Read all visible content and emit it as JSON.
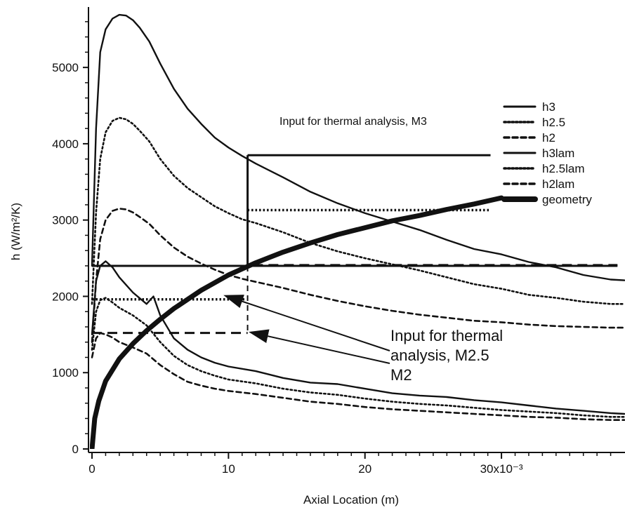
{
  "chart_data": {
    "type": "line",
    "xlabel": "Axial Location (m)",
    "ylabel": "h (W/m²/K)",
    "xlim": [
      0,
      0.039
    ],
    "ylim": [
      0,
      5700
    ],
    "x_ticks": [
      {
        "value": 0,
        "label": "0"
      },
      {
        "value": 0.01,
        "label": "10"
      },
      {
        "value": 0.02,
        "label": "20"
      },
      {
        "value": 0.03,
        "label": "30x10⁻³"
      }
    ],
    "y_ticks": [
      {
        "value": 0,
        "label": "0"
      },
      {
        "value": 1000,
        "label": "1000"
      },
      {
        "value": 2000,
        "label": "2000"
      },
      {
        "value": 3000,
        "label": "3000"
      },
      {
        "value": 4000,
        "label": "4000"
      },
      {
        "value": 5000,
        "label": "5000"
      }
    ],
    "legend_position": "right",
    "series": [
      {
        "name": "h3",
        "style": "solid",
        "x": [
          0,
          0.0003,
          0.0006,
          0.001,
          0.0015,
          0.002,
          0.0025,
          0.003,
          0.0035,
          0.0042,
          0.005,
          0.006,
          0.007,
          0.008,
          0.009,
          0.01,
          0.011,
          0.012,
          0.014,
          0.016,
          0.018,
          0.02,
          0.022,
          0.024,
          0.026,
          0.028,
          0.03,
          0.032,
          0.034,
          0.036,
          0.038,
          0.039
        ],
        "y": [
          2400,
          4200,
          5200,
          5500,
          5640,
          5690,
          5680,
          5620,
          5520,
          5340,
          5050,
          4720,
          4460,
          4260,
          4080,
          3950,
          3840,
          3740,
          3560,
          3370,
          3220,
          3090,
          2980,
          2870,
          2740,
          2620,
          2550,
          2450,
          2380,
          2280,
          2220,
          2210
        ]
      },
      {
        "name": "h2.5",
        "style": "dotted",
        "x": [
          0,
          0.0003,
          0.0006,
          0.001,
          0.0015,
          0.002,
          0.0025,
          0.003,
          0.0035,
          0.0042,
          0.005,
          0.006,
          0.007,
          0.008,
          0.009,
          0.01,
          0.011,
          0.012,
          0.014,
          0.016,
          0.018,
          0.02,
          0.022,
          0.024,
          0.026,
          0.028,
          0.03,
          0.032,
          0.034,
          0.036,
          0.038,
          0.039
        ],
        "y": [
          1900,
          3100,
          3800,
          4150,
          4300,
          4340,
          4320,
          4260,
          4170,
          4030,
          3800,
          3580,
          3420,
          3300,
          3180,
          3090,
          3010,
          2960,
          2840,
          2700,
          2590,
          2500,
          2420,
          2340,
          2250,
          2160,
          2100,
          2020,
          1980,
          1930,
          1900,
          1900
        ]
      },
      {
        "name": "h2",
        "style": "dashed",
        "x": [
          0,
          0.0003,
          0.0006,
          0.001,
          0.0015,
          0.002,
          0.0025,
          0.003,
          0.0035,
          0.0042,
          0.005,
          0.006,
          0.007,
          0.008,
          0.009,
          0.01,
          0.011,
          0.012,
          0.014,
          0.016,
          0.018,
          0.02,
          0.022,
          0.024,
          0.026,
          0.028,
          0.03,
          0.032,
          0.034,
          0.036,
          0.038,
          0.039
        ],
        "y": [
          1400,
          2200,
          2750,
          3000,
          3120,
          3150,
          3140,
          3100,
          3040,
          2950,
          2800,
          2640,
          2520,
          2430,
          2350,
          2280,
          2230,
          2190,
          2110,
          2020,
          1940,
          1870,
          1810,
          1760,
          1720,
          1680,
          1660,
          1630,
          1610,
          1600,
          1590,
          1590
        ]
      },
      {
        "name": "h3lam",
        "style": "solid",
        "x": [
          0,
          0.0003,
          0.0006,
          0.001,
          0.0015,
          0.002,
          0.003,
          0.004,
          0.0045,
          0.005,
          0.006,
          0.007,
          0.008,
          0.009,
          0.01,
          0.012,
          0.014,
          0.016,
          0.018,
          0.02,
          0.022,
          0.024,
          0.026,
          0.028,
          0.03,
          0.032,
          0.034,
          0.036,
          0.038,
          0.039
        ],
        "y": [
          1500,
          2200,
          2400,
          2460,
          2380,
          2250,
          2050,
          1900,
          2000,
          1750,
          1450,
          1300,
          1200,
          1130,
          1080,
          1020,
          930,
          870,
          850,
          790,
          730,
          700,
          680,
          640,
          610,
          570,
          530,
          500,
          470,
          460
        ]
      },
      {
        "name": "h2.5lam",
        "style": "dotted",
        "x": [
          0,
          0.0003,
          0.0006,
          0.001,
          0.0015,
          0.002,
          0.003,
          0.004,
          0.005,
          0.006,
          0.007,
          0.008,
          0.009,
          0.01,
          0.012,
          0.014,
          0.016,
          0.018,
          0.02,
          0.022,
          0.024,
          0.026,
          0.028,
          0.03,
          0.032,
          0.034,
          0.036,
          0.038,
          0.039
        ],
        "y": [
          1300,
          1800,
          1950,
          1980,
          1920,
          1850,
          1750,
          1620,
          1400,
          1220,
          1100,
          1020,
          960,
          910,
          860,
          790,
          740,
          710,
          660,
          620,
          590,
          570,
          540,
          510,
          490,
          470,
          440,
          420,
          420
        ]
      },
      {
        "name": "h2lam",
        "style": "dashed",
        "x": [
          0,
          0.0003,
          0.0006,
          0.001,
          0.0015,
          0.002,
          0.003,
          0.004,
          0.005,
          0.006,
          0.007,
          0.008,
          0.009,
          0.01,
          0.012,
          0.014,
          0.016,
          0.018,
          0.02,
          0.022,
          0.024,
          0.026,
          0.028,
          0.03,
          0.032,
          0.034,
          0.036,
          0.038,
          0.039
        ],
        "y": [
          1200,
          1450,
          1520,
          1500,
          1460,
          1400,
          1330,
          1250,
          1100,
          980,
          880,
          830,
          790,
          760,
          720,
          670,
          620,
          590,
          550,
          520,
          500,
          480,
          460,
          440,
          420,
          410,
          390,
          380,
          380
        ]
      },
      {
        "name": "geometry",
        "style": "thick",
        "x": [
          0,
          0.0002,
          0.0005,
          0.001,
          0.002,
          0.003,
          0.004,
          0.005,
          0.006,
          0.008,
          0.01,
          0.012,
          0.014,
          0.016,
          0.018,
          0.02,
          0.022,
          0.024,
          0.026,
          0.028,
          0.03
        ],
        "y": [
          0,
          400,
          630,
          890,
          1180,
          1380,
          1550,
          1700,
          1840,
          2080,
          2280,
          2440,
          2580,
          2700,
          2810,
          2900,
          2990,
          3060,
          3140,
          3210,
          3290
        ]
      }
    ],
    "annotations": {
      "m3_label": "Input for thermal analysis, M3",
      "m25_line1": "Input for thermal",
      "m25_line2": "analysis, M2.5",
      "m2_label": "M2"
    }
  }
}
